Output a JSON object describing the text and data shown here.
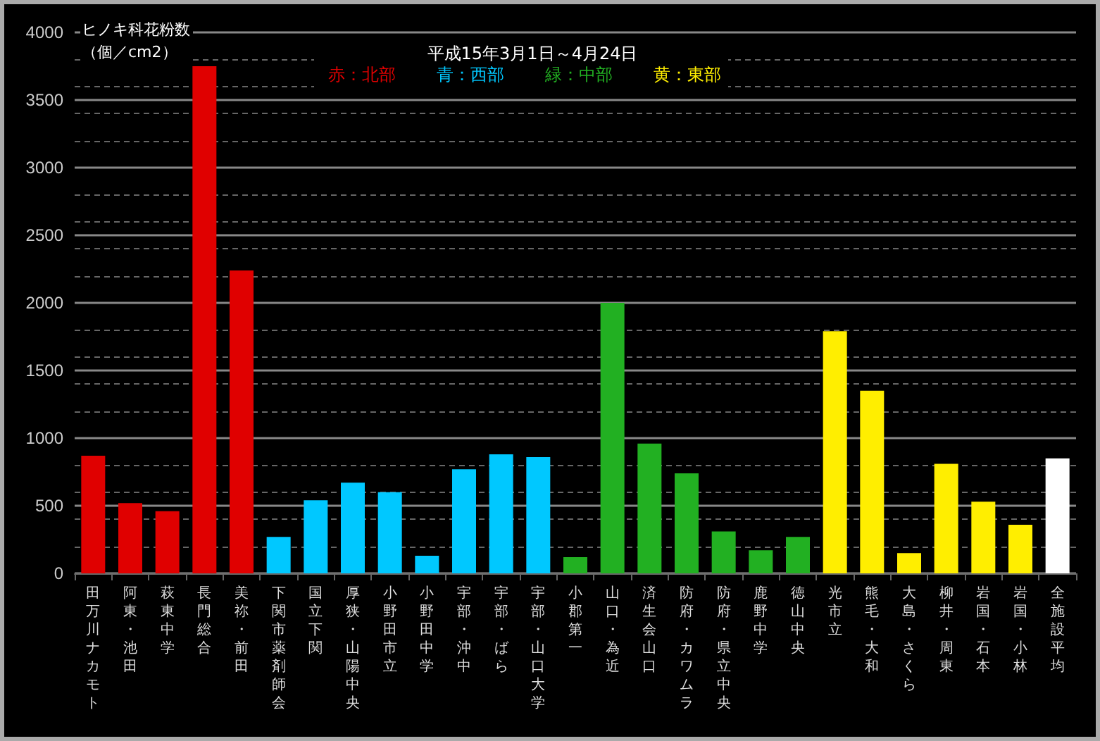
{
  "chart_data": {
    "type": "bar",
    "title": "平成15年3月1日～4月24日",
    "ylabel": "ヒノキ科花粉数（個／cm2）",
    "categories": [
      "田万川ナカモト",
      "阿東・池田",
      "萩東中学",
      "長門総合",
      "美祢・前田",
      "下関市薬剤師会",
      "国立下関",
      "厚狭・山陽中央",
      "小野田市立",
      "小野田中学",
      "宇部・沖中",
      "宇部・ばら",
      "宇部・山口大学",
      "小郡第一",
      "山口・為近",
      "済生会山口",
      "防府・カワムラ",
      "防府・県立中央",
      "鹿野中学",
      "徳山中央",
      "光市立",
      "熊毛・大和",
      "大島・さくら",
      "柳井・周東",
      "岩国・石本",
      "岩国・小林",
      "全施設平均"
    ],
    "stacked": true,
    "series": [
      {
        "name": "赤：北部",
        "color": "#e00000",
        "values": [
          870,
          520,
          460,
          3750,
          2240,
          null,
          null,
          null,
          null,
          null,
          null,
          null,
          null,
          null,
          null,
          null,
          null,
          null,
          null,
          null,
          null,
          null,
          null,
          null,
          null,
          null,
          null
        ]
      },
      {
        "name": "青：西部",
        "color": "#00c8ff",
        "values": [
          null,
          null,
          null,
          null,
          null,
          270,
          540,
          670,
          600,
          130,
          770,
          880,
          860,
          null,
          null,
          null,
          null,
          null,
          null,
          null,
          null,
          null,
          null,
          null,
          null,
          null,
          null
        ]
      },
      {
        "name": "緑：中部",
        "color": "#22b022",
        "values": [
          null,
          null,
          null,
          null,
          null,
          null,
          null,
          null,
          null,
          null,
          null,
          null,
          null,
          120,
          2000,
          960,
          740,
          310,
          170,
          270,
          null,
          null,
          null,
          null,
          null,
          null,
          null
        ]
      },
      {
        "name": "黄：東部",
        "color": "#ffee00",
        "values": [
          null,
          null,
          null,
          null,
          null,
          null,
          null,
          null,
          null,
          null,
          null,
          null,
          null,
          null,
          null,
          null,
          null,
          null,
          null,
          null,
          1790,
          1350,
          150,
          810,
          530,
          360,
          null
        ]
      },
      {
        "color": "#ffffff",
        "values": [
          null,
          null,
          null,
          null,
          null,
          null,
          null,
          null,
          null,
          null,
          null,
          null,
          null,
          null,
          null,
          null,
          null,
          null,
          null,
          null,
          null,
          null,
          null,
          null,
          null,
          null,
          850
        ]
      }
    ],
    "ylim": [
      0,
      4000
    ],
    "yticks": [
      0,
      500,
      1000,
      1500,
      2000,
      2500,
      3000,
      3500,
      4000
    ],
    "grid": "y",
    "legend": "top"
  }
}
